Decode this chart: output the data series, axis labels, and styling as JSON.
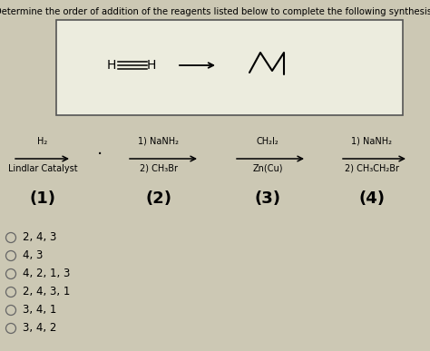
{
  "title": "Determine the order of addition of the reagents listed below to complete the following synthesis.",
  "bg_color_top": "#c8c4b0",
  "bg_color": "#ccc8b4",
  "box_facecolor": "#e8e8dc",
  "text_color": "#000000",
  "reagent_cols": [
    {
      "label": "(1)",
      "line1": "H₂",
      "line2": "Lindlar Catalyst",
      "dot": true
    },
    {
      "label": "(2)",
      "line1": "1) NaNH₂",
      "line2": "2) CH₃Br",
      "dot": false
    },
    {
      "label": "(3)",
      "line1": "CH₂I₂",
      "line2": "Zn(Cu)",
      "dot": false
    },
    {
      "label": "(4)",
      "line1": "1) NaNH₂",
      "line2": "2) CH₃CH₂Br",
      "dot": false
    }
  ],
  "choices": [
    "2, 4, 3",
    "4, 3",
    "4, 2, 1, 3",
    "2, 4, 3, 1",
    "3, 4, 1",
    "3, 4, 2"
  ]
}
